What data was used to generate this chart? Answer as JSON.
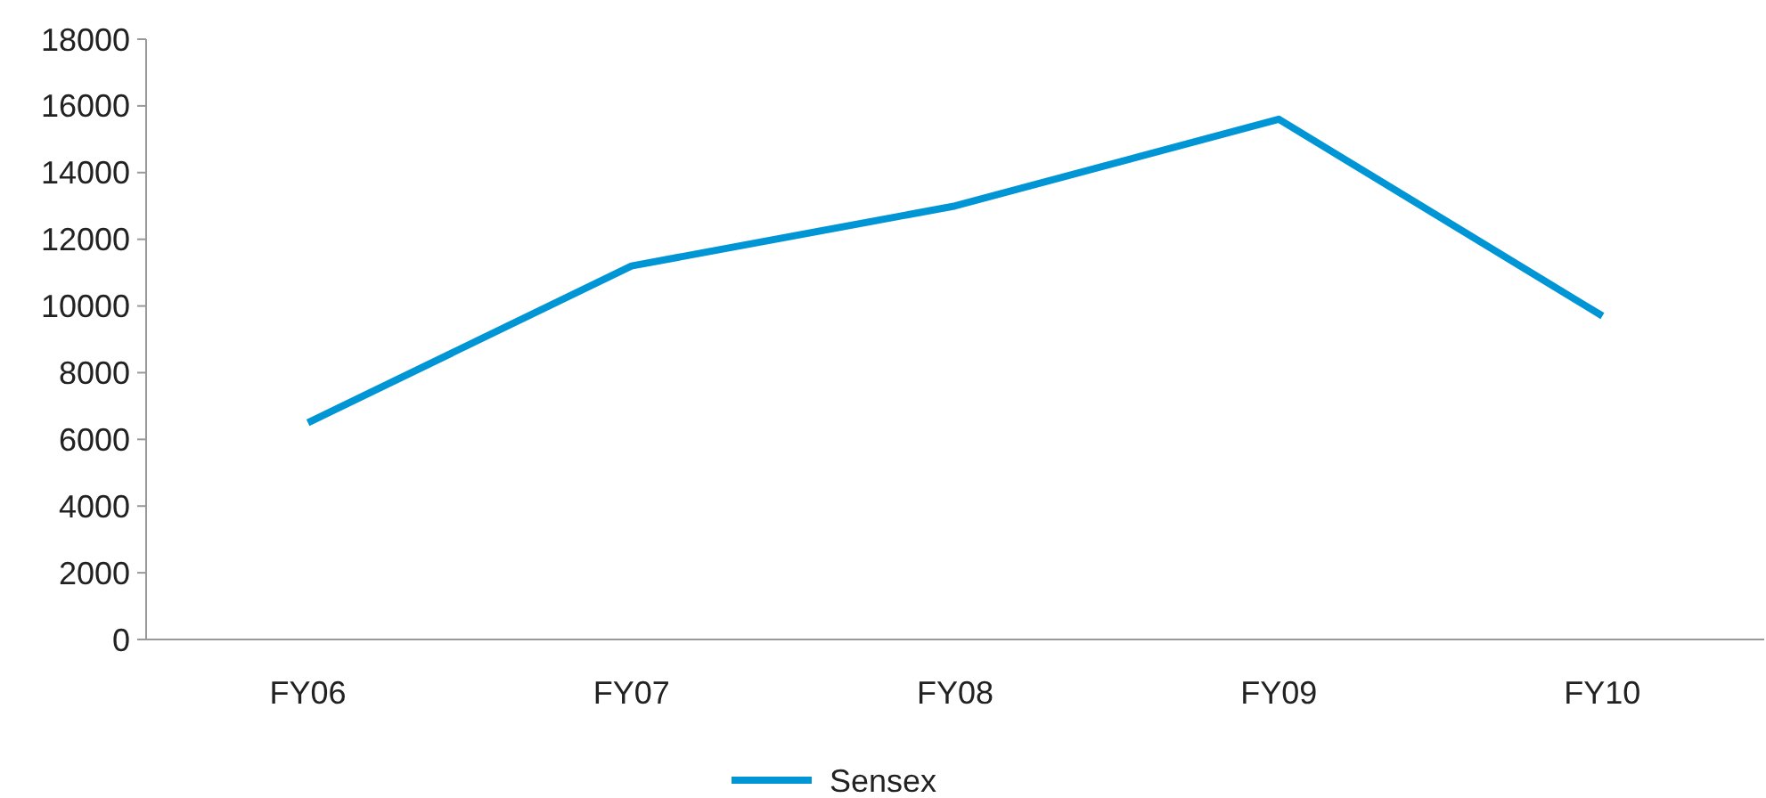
{
  "chart_data": {
    "type": "line",
    "categories": [
      "FY06",
      "FY07",
      "FY08",
      "FY09",
      "FY10"
    ],
    "series": [
      {
        "name": "Sensex",
        "color": "#0096d6",
        "values": [
          6500,
          11200,
          13000,
          15600,
          9700
        ]
      }
    ],
    "ylim": [
      0,
      18000
    ],
    "yticks": [
      0,
      2000,
      4000,
      6000,
      8000,
      10000,
      12000,
      14000,
      16000,
      18000
    ],
    "grid": false,
    "legend": "bottom",
    "marker": "none"
  }
}
